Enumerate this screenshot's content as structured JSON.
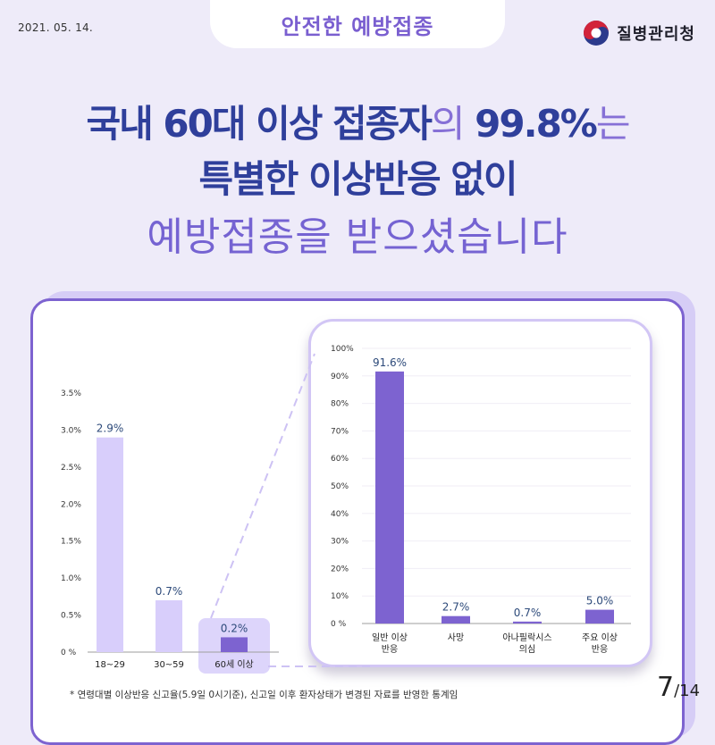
{
  "header": {
    "date": "2021. 05. 14.",
    "topic": "안전한 예방접종",
    "org": "질병관리청"
  },
  "headline": {
    "line1_a": "국내 60대 이상 접종자",
    "line1_b": "의",
    "line1_c": " 99.8%",
    "line1_d": "는",
    "line2": "특별한 이상반응 없이",
    "line3": "예방접종을 받으셨습니다"
  },
  "chart_data": [
    {
      "type": "bar",
      "categories": [
        "18~29",
        "30~59",
        "60세 이상"
      ],
      "values": [
        2.9,
        0.7,
        0.2
      ],
      "value_labels": [
        "2.9%",
        "0.7%",
        "0.2%"
      ],
      "y_ticks": [
        "0 %",
        "0.5%",
        "1.0%",
        "1.5%",
        "2.0%",
        "2.5%",
        "3.0%",
        "3.5%"
      ],
      "ylim": [
        0,
        3.5
      ],
      "highlight_index": 2
    },
    {
      "type": "bar",
      "categories": [
        "일반 이상\n반응",
        "사망",
        "아나필락시스\n의심",
        "주요 이상\n반응"
      ],
      "values": [
        91.6,
        2.7,
        0.7,
        5.0
      ],
      "value_labels": [
        "91.6%",
        "2.7%",
        "0.7%",
        "5.0%"
      ],
      "y_ticks": [
        "0 %",
        "10%",
        "20%",
        "30%",
        "40%",
        "50%",
        "60%",
        "70%",
        "80%",
        "90%",
        "100%"
      ],
      "ylim": [
        0,
        100
      ]
    }
  ],
  "colors": {
    "left_bar": "#d8cefb",
    "left_highlight_bar": "#7d63d0",
    "highlight_box": "#ddd5fb",
    "right_bar": "#7d63d0",
    "value_label": "#2d4a7a"
  },
  "footnote": "* 연령대별 이상반응 신고율(5.9일 0시기준), 신고일 이후 환자상태가 변경된 자료를 반영한 통계임",
  "page": {
    "current": "7",
    "total": "14"
  }
}
